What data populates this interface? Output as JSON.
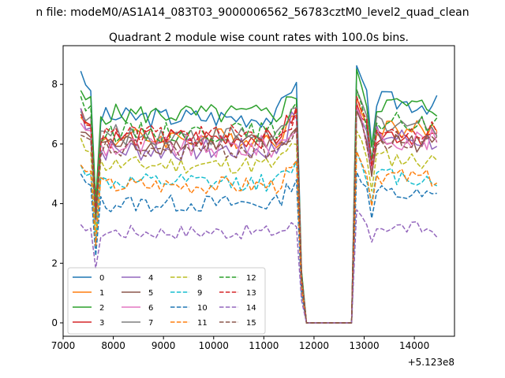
{
  "chart_data": {
    "type": "line",
    "suptitle": "n file: modeM0/AS1A14_083T03_9000006562_56783cztM0_level2_quad_clean",
    "title": "Quadrant 2 module wise count rates with 100.0s bins.",
    "xlabel": "",
    "ylabel": "",
    "x_offset_label": "+5.123e8",
    "xlim": [
      7000,
      14800
    ],
    "ylim": [
      -0.45,
      9.3
    ],
    "xticks": [
      "7000",
      "8000",
      "9000",
      "10000",
      "11000",
      "12000",
      "13000",
      "14000"
    ],
    "yticks": [
      "0",
      "2",
      "4",
      "6",
      "8"
    ],
    "x": [
      7350,
      7450,
      7550,
      7650,
      7750,
      7850,
      7950,
      8050,
      8150,
      8250,
      8350,
      8450,
      8550,
      8650,
      8750,
      8850,
      8950,
      9050,
      9150,
      9250,
      9350,
      9450,
      9550,
      9650,
      9750,
      9850,
      9950,
      10050,
      10150,
      10250,
      10350,
      10450,
      10550,
      10650,
      10750,
      10850,
      10950,
      11050,
      11150,
      11250,
      11350,
      11450,
      11550,
      11650,
      11750,
      11850,
      11950,
      12050,
      12150,
      12250,
      12350,
      12450,
      12550,
      12650,
      12750,
      12850,
      12950,
      13050,
      13150,
      13250,
      13350,
      13450,
      13550,
      13650,
      13750,
      13850,
      13950,
      14050,
      14150,
      14250,
      14350,
      14450
    ],
    "legend": {
      "placement": "lower-left",
      "columns": 4
    },
    "series": [
      {
        "name": "0",
        "color": "#1f77b4",
        "style": "solid",
        "level": 6.9,
        "start": 8.45,
        "post": 7.5,
        "amp": 0.35
      },
      {
        "name": "1",
        "color": "#ff7f0e",
        "style": "solid",
        "level": 6.2,
        "start": 6.9,
        "post": 6.6,
        "amp": 0.35
      },
      {
        "name": "2",
        "color": "#2ca02c",
        "style": "solid",
        "level": 7.0,
        "start": 7.8,
        "post": 7.4,
        "amp": 0.35
      },
      {
        "name": "3",
        "color": "#d62728",
        "style": "solid",
        "level": 6.2,
        "start": 7.2,
        "post": 6.4,
        "amp": 0.35
      },
      {
        "name": "4",
        "color": "#9467bd",
        "style": "solid",
        "level": 5.8,
        "start": 7.2,
        "post": 6.3,
        "amp": 0.4
      },
      {
        "name": "5",
        "color": "#8c564b",
        "style": "solid",
        "level": 6.0,
        "start": 6.4,
        "post": 6.2,
        "amp": 0.35
      },
      {
        "name": "6",
        "color": "#e377c2",
        "style": "solid",
        "level": 5.9,
        "start": 6.7,
        "post": 6.3,
        "amp": 0.4
      },
      {
        "name": "7",
        "color": "#7f7f7f",
        "style": "solid",
        "level": 6.3,
        "start": 7.1,
        "post": 6.8,
        "amp": 0.35
      },
      {
        "name": "8",
        "color": "#bcbd22",
        "style": "dashed",
        "level": 5.3,
        "start": 6.2,
        "post": 5.6,
        "amp": 0.3
      },
      {
        "name": "9",
        "color": "#17becf",
        "style": "dashed",
        "level": 4.7,
        "start": 5.3,
        "post": 5.0,
        "amp": 0.3
      },
      {
        "name": "10",
        "color": "#1f77b4",
        "style": "dashed",
        "level": 4.0,
        "start": 5.0,
        "post": 4.4,
        "amp": 0.3
      },
      {
        "name": "11",
        "color": "#ff7f0e",
        "style": "dashed",
        "level": 4.6,
        "start": 5.3,
        "post": 5.0,
        "amp": 0.3
      },
      {
        "name": "12",
        "color": "#2ca02c",
        "style": "dashed",
        "level": 6.4,
        "start": 7.6,
        "post": 6.8,
        "amp": 0.35
      },
      {
        "name": "13",
        "color": "#d62728",
        "style": "dashed",
        "level": 6.3,
        "start": 7.0,
        "post": 6.6,
        "amp": 0.35
      },
      {
        "name": "14",
        "color": "#9467bd",
        "style": "dashed",
        "level": 3.05,
        "start": 3.3,
        "post": 3.3,
        "amp": 0.25
      },
      {
        "name": "15",
        "color": "#8c564b",
        "style": "dashed",
        "level": 5.8,
        "start": 6.3,
        "post": 6.2,
        "amp": 0.35
      }
    ]
  }
}
